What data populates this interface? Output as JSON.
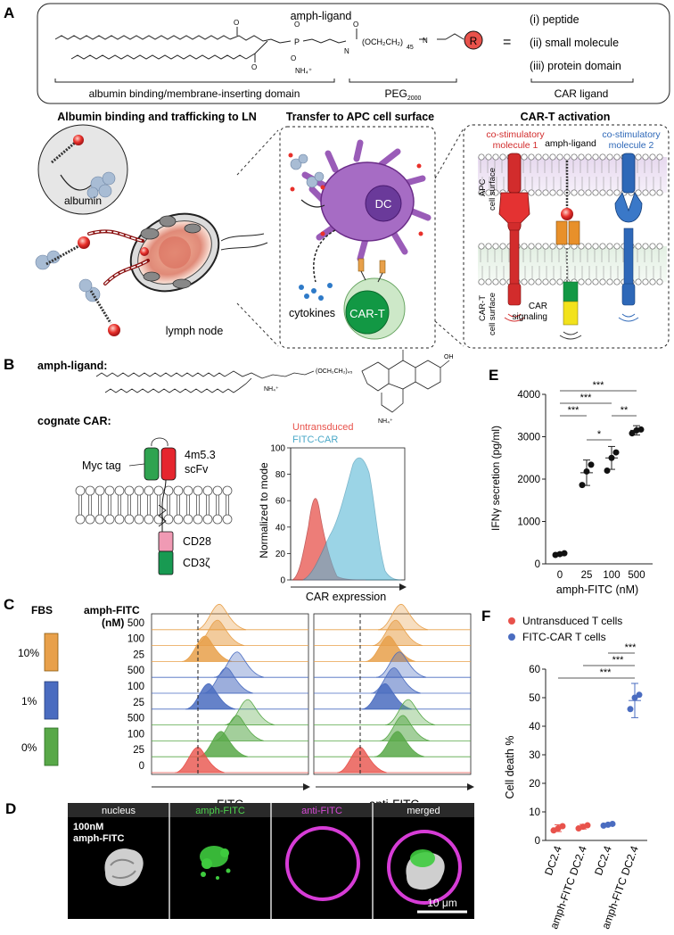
{
  "panel_letters": {
    "a": "A",
    "b": "B",
    "c": "C",
    "d": "D",
    "e": "E",
    "f": "F"
  },
  "a": {
    "ligand_title": "amph-ligand",
    "nh4": "NH₄⁺",
    "peg_formula": "(OCH₂CH₂)",
    "peg_sub": "45",
    "r_label": "R",
    "equals": "=",
    "options": [
      "(i) peptide",
      "(ii) small molecule",
      "(iii) protein domain"
    ],
    "domain_labels": [
      "albumin binding/membrane-inserting domain",
      "PEG",
      "CAR ligand"
    ],
    "peg_domain_sub": "2000",
    "section_titles": [
      "Albumin binding and trafficking to LN",
      "Transfer to APC cell surface",
      "CAR-T activation"
    ],
    "albumin": "albumin",
    "lymph_node": "lymph node",
    "dc": "DC",
    "cytokines": "cytokines",
    "car_t": "CAR-T",
    "costim1": [
      "co-stimulatory",
      "molecule 1"
    ],
    "amph_ligand": "amph-ligand",
    "costim2": [
      "co-stimulatory",
      "molecule 2"
    ],
    "apc_surface": [
      "APC",
      "cell surface"
    ],
    "cart_surface": [
      "CAR-T",
      "cell surface"
    ],
    "car_signaling": [
      "CAR",
      "signaling"
    ]
  },
  "b": {
    "amph_ligand_label": "amph-ligand:",
    "cognate_car": "cognate CAR:",
    "myc_tag": "Myc tag",
    "scfv": [
      "4m5.3",
      "scFv"
    ],
    "cd28": "CD28",
    "cd3": "CD3ζ",
    "legend": [
      "Untransduced",
      "FITC-CAR"
    ],
    "ylabel": "Normalized to mode",
    "xlabel": "CAR expression",
    "yticks": [
      "0",
      "20",
      "40",
      "60",
      "80",
      "100"
    ],
    "colors": {
      "untransduced": "#e8524b",
      "fitc_car": "#5ab8d6"
    }
  },
  "c": {
    "fbs": "FBS",
    "amph_fitc": "amph-FITC",
    "nm": "(nM)",
    "fbs_levels": [
      "10%",
      "1%",
      "0%"
    ],
    "conc_labels": [
      "500",
      "100",
      "25",
      "500",
      "100",
      "25",
      "500",
      "100",
      "25",
      "0"
    ],
    "x_labels": [
      "FITC",
      "anti-FITC"
    ],
    "colors": {
      "orange": "#e8a04a",
      "blue": "#4a6cc0",
      "green": "#58a848",
      "red": "#e8524b"
    }
  },
  "d": {
    "headers": [
      "nucleus",
      "amph-FITC",
      "anti-FITC",
      "merged"
    ],
    "inset": [
      "100nM",
      "amph-FITC"
    ],
    "scale": "10 μm"
  },
  "e": {
    "ylabel": "IFNγ secretion (pg/ml)",
    "xlabel": "amph-FITC (nM)",
    "sig": [
      "***",
      "***",
      "***",
      "*",
      "**"
    ]
  },
  "f": {
    "legend": [
      "Untransduced T cells",
      "FITC-CAR T cells"
    ],
    "ylabel": "Cell death %",
    "sig": [
      "***",
      "***",
      "***"
    ]
  },
  "chart_data": [
    {
      "type": "scatter",
      "panel": "E",
      "categories": [
        "0",
        "25",
        "100",
        "500"
      ],
      "x": [
        0,
        25,
        100,
        500
      ],
      "points": [
        [
          210,
          230,
          250
        ],
        [
          1860,
          2180,
          2340
        ],
        [
          2200,
          2500,
          2630
        ],
        [
          3080,
          3150,
          3170
        ]
      ],
      "means": [
        230,
        2150,
        2500,
        3150
      ],
      "errors": [
        35,
        300,
        270,
        110
      ],
      "ylim": [
        0,
        4000
      ],
      "yticks": [
        0,
        1000,
        2000,
        3000,
        4000
      ],
      "xlabel": "amph-FITC (nM)",
      "ylabel": "IFNγ secretion (pg/ml)"
    },
    {
      "type": "scatter",
      "panel": "F",
      "categories": [
        "DC2.4",
        "amph-FITC DC2.4",
        "DC2.4",
        "amph-FITC DC2.4"
      ],
      "groups": [
        "Untransduced T cells",
        "Untransduced T cells",
        "FITC-CAR T cells",
        "FITC-CAR T cells"
      ],
      "points": [
        [
          3.5,
          4.2,
          5.0
        ],
        [
          4.2,
          4.8,
          5.3
        ],
        [
          5.2,
          5.5,
          5.8
        ],
        [
          46,
          50,
          51
        ]
      ],
      "means": [
        4.3,
        4.8,
        5.5,
        49
      ],
      "errors": [
        1.2,
        0.8,
        0.4,
        6
      ],
      "ylim": [
        0,
        60
      ],
      "yticks": [
        0,
        10,
        20,
        30,
        40,
        50,
        60
      ],
      "ylabel": "Cell death %",
      "colors": [
        "#e8524b",
        "#e8524b",
        "#4a6cc0",
        "#4a6cc0"
      ]
    }
  ]
}
